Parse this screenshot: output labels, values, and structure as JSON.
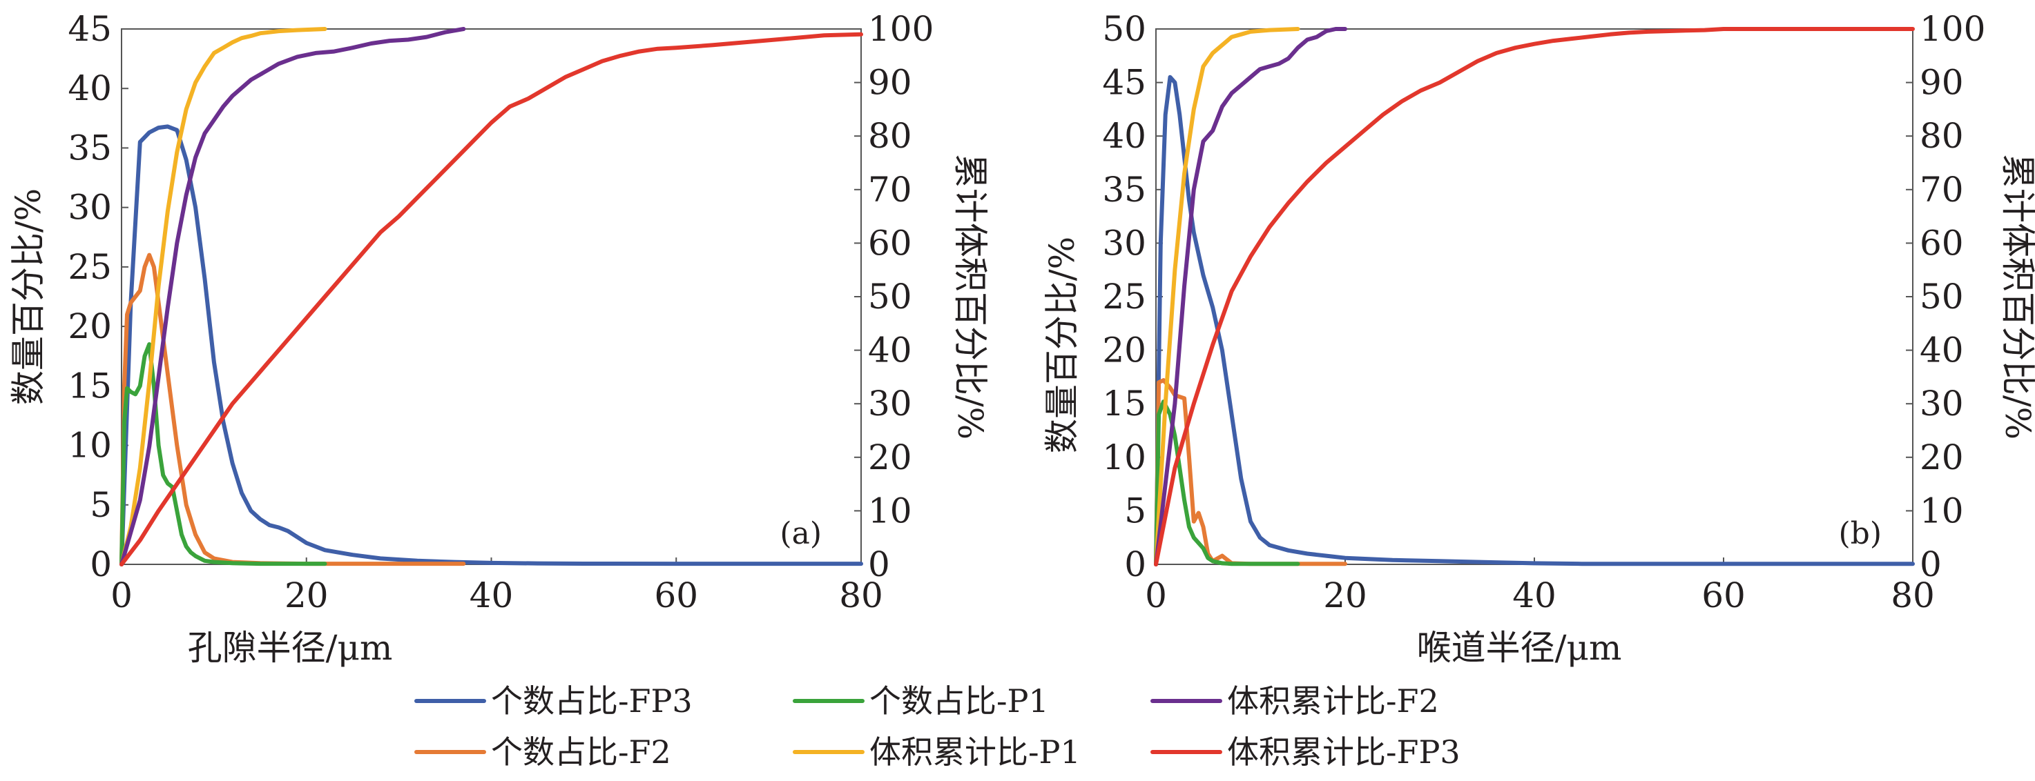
{
  "colors": {
    "FP3_count": "#3f5fa8",
    "F2_count": "#e57a35",
    "P1_count": "#3aa33b",
    "P1_vol": "#f4b224",
    "FP3_vol": "#e2372c",
    "F2_vol": "#6a2f8e"
  },
  "legend": {
    "items": [
      {
        "label": "个数占比-FP3",
        "color_key": "FP3_count"
      },
      {
        "label": "个数占比-P1",
        "color_key": "P1_count"
      },
      {
        "label": "体积累计比-F2",
        "color_key": "F2_vol"
      },
      {
        "label": "个数占比-F2",
        "color_key": "F2_count"
      },
      {
        "label": "体积累计比-P1",
        "color_key": "P1_vol"
      },
      {
        "label": "体积累计比-FP3",
        "color_key": "FP3_vol"
      }
    ]
  },
  "chart_data": [
    {
      "type": "line",
      "panel_label": "(a)",
      "xlabel": "孔隙半径/μm",
      "ylabel": "数量百分比/%",
      "y2label": "累计体积百分比/%",
      "xlim": [
        0,
        80
      ],
      "ylim": [
        0,
        45
      ],
      "y2lim": [
        0,
        100
      ],
      "xticks": [
        "0",
        "20",
        "40",
        "60",
        "80"
      ],
      "yticks": [
        "0",
        "5",
        "10",
        "15",
        "20",
        "25",
        "30",
        "35",
        "40",
        "45"
      ],
      "y2ticks": [
        "0",
        "10",
        "20",
        "30",
        "40",
        "50",
        "60",
        "70",
        "80",
        "90",
        "100"
      ],
      "grid": false,
      "series": [
        {
          "key": "FP3_count",
          "axis": "left",
          "x": [
            0,
            1,
            2,
            3,
            4,
            5,
            6,
            7,
            8,
            9,
            10,
            11,
            12,
            13,
            14,
            15,
            16,
            17,
            18,
            20,
            22,
            25,
            28,
            32,
            36,
            40,
            45,
            50,
            60,
            70,
            80
          ],
          "y": [
            0,
            22,
            35.5,
            36.3,
            36.7,
            36.8,
            36.5,
            34,
            30,
            24,
            17,
            12,
            8.5,
            6,
            4.5,
            3.8,
            3.3,
            3.1,
            2.8,
            1.8,
            1.2,
            0.8,
            0.5,
            0.3,
            0.2,
            0.12,
            0.08,
            0.06,
            0.05,
            0.05,
            0.05
          ]
        },
        {
          "key": "F2_count",
          "axis": "left",
          "x": [
            0,
            0.3,
            0.6,
            1,
            2,
            2.5,
            3,
            3.5,
            4,
            5,
            6,
            7,
            8,
            9,
            10,
            12,
            15,
            20,
            25,
            30,
            37
          ],
          "y": [
            0,
            15,
            21,
            22,
            23,
            25,
            26,
            25,
            22,
            16,
            10,
            5,
            2.5,
            1,
            0.5,
            0.2,
            0.1,
            0.05,
            0.05,
            0.05,
            0.05
          ]
        },
        {
          "key": "P1_count",
          "axis": "left",
          "x": [
            0,
            0.3,
            0.6,
            1,
            1.5,
            2,
            2.5,
            3,
            3.5,
            4,
            4.5,
            5,
            5.5,
            6,
            6.5,
            7,
            7.5,
            8,
            9,
            10,
            12,
            15,
            20,
            22
          ],
          "y": [
            0,
            12,
            14.8,
            14.5,
            14.3,
            15,
            17.5,
            18.5,
            15,
            10,
            7.5,
            6.8,
            6.5,
            4.5,
            2.5,
            1.5,
            1.0,
            0.7,
            0.3,
            0.2,
            0.1,
            0.05,
            0.05,
            0.05
          ]
        },
        {
          "key": "P1_vol",
          "axis": "right",
          "x": [
            0,
            1,
            2,
            3,
            4,
            5,
            6,
            7,
            8,
            9,
            10,
            11,
            12,
            13,
            14,
            15,
            17,
            19,
            22
          ],
          "y": [
            0,
            7,
            18,
            34,
            52,
            66,
            77,
            85,
            90,
            93,
            95.5,
            96.5,
            97.5,
            98.3,
            98.7,
            99.2,
            99.6,
            99.8,
            100
          ]
        },
        {
          "key": "F2_vol",
          "axis": "right",
          "x": [
            0,
            2,
            3,
            4,
            5,
            6,
            7,
            8,
            9,
            10,
            11,
            12,
            13,
            14,
            15,
            17,
            19,
            21,
            23,
            25,
            27,
            29,
            31,
            33,
            35,
            37
          ],
          "y": [
            0,
            12,
            22,
            35,
            48,
            60,
            69,
            76,
            80.5,
            83,
            85.5,
            87.5,
            89,
            90.5,
            91.5,
            93.5,
            94.8,
            95.5,
            95.8,
            96.5,
            97.3,
            97.8,
            98,
            98.5,
            99.4,
            100
          ]
        },
        {
          "key": "FP3_vol",
          "axis": "right",
          "x": [
            0,
            2,
            4,
            6,
            8,
            10,
            12,
            14,
            16,
            18,
            20,
            22,
            24,
            26,
            28,
            30,
            32,
            34,
            36,
            38,
            40,
            42,
            44,
            46,
            48,
            50,
            52,
            54,
            56,
            58,
            60,
            64,
            68,
            72,
            76,
            80
          ],
          "y": [
            0,
            4.5,
            10,
            15,
            20,
            25,
            30,
            34,
            38,
            42,
            46,
            50,
            54,
            58,
            62,
            65,
            68.5,
            72,
            75.5,
            79,
            82.5,
            85.5,
            87,
            89,
            91,
            92.5,
            94,
            95,
            95.8,
            96.3,
            96.5,
            97,
            97.6,
            98.2,
            98.8,
            99
          ]
        }
      ]
    },
    {
      "type": "line",
      "panel_label": "(b)",
      "xlabel": "喉道半径/μm",
      "ylabel": "数量百分比/%",
      "y2label": "累计体积百分比/%",
      "xlim": [
        0,
        80
      ],
      "ylim": [
        0,
        50
      ],
      "y2lim": [
        0,
        100
      ],
      "xticks": [
        "0",
        "20",
        "40",
        "60",
        "80"
      ],
      "yticks": [
        "0",
        "5",
        "10",
        "15",
        "20",
        "25",
        "30",
        "35",
        "40",
        "45",
        "50"
      ],
      "y2ticks": [
        "0",
        "10",
        "20",
        "30",
        "40",
        "50",
        "60",
        "70",
        "80",
        "90",
        "100"
      ],
      "grid": false,
      "series": [
        {
          "key": "FP3_count",
          "axis": "left",
          "x": [
            0,
            0.5,
            1,
            1.5,
            2,
            2.5,
            3,
            3.5,
            4,
            5,
            6,
            7,
            8,
            9,
            10,
            11,
            12,
            14,
            16,
            18,
            20,
            25,
            30,
            35,
            40,
            45,
            50,
            60,
            70,
            80
          ],
          "y": [
            0,
            30,
            42,
            45.5,
            45,
            42,
            38,
            34,
            31,
            27,
            24,
            20,
            14,
            8,
            4,
            2.5,
            1.8,
            1.3,
            1.0,
            0.8,
            0.6,
            0.4,
            0.3,
            0.2,
            0.1,
            0.05,
            0.05,
            0.05,
            0.05,
            0.05
          ]
        },
        {
          "key": "F2_count",
          "axis": "left",
          "x": [
            0,
            0.3,
            0.8,
            1.5,
            2,
            3,
            3.5,
            4,
            4.5,
            5,
            5.5,
            6,
            7,
            8,
            10,
            15,
            20
          ],
          "y": [
            0,
            17,
            17.2,
            16.5,
            15.8,
            15.5,
            10,
            4,
            4.8,
            3.5,
            1.0,
            0.3,
            0.8,
            0.1,
            0.05,
            0.05,
            0.05
          ]
        },
        {
          "key": "P1_count",
          "axis": "left",
          "x": [
            0,
            0.3,
            0.8,
            1.5,
            2,
            2.5,
            3,
            3.5,
            4,
            4.5,
            5,
            5.5,
            6,
            7,
            8,
            10,
            15
          ],
          "y": [
            0,
            14,
            15.2,
            14,
            12,
            9,
            6,
            3.5,
            2.5,
            2.0,
            1.5,
            0.6,
            0.3,
            0.1,
            0.05,
            0.05,
            0.05
          ]
        },
        {
          "key": "P1_vol",
          "axis": "right",
          "x": [
            0,
            0.5,
            1,
            2,
            3,
            4,
            5,
            6,
            7,
            8,
            9,
            10,
            12,
            15
          ],
          "y": [
            0,
            15,
            30,
            55,
            73,
            85,
            93,
            95.5,
            97,
            98.5,
            99,
            99.5,
            99.8,
            100
          ]
        },
        {
          "key": "F2_vol",
          "axis": "right",
          "x": [
            0,
            1,
            2,
            3,
            4,
            5,
            6,
            7,
            8,
            9,
            10,
            11,
            12,
            13,
            14,
            15,
            16,
            17,
            18,
            19,
            20
          ],
          "y": [
            0,
            15,
            30,
            52,
            70,
            79,
            81,
            85.5,
            88,
            89.5,
            91,
            92.5,
            93,
            93.5,
            94.5,
            96.5,
            98,
            98.5,
            99.6,
            100,
            100
          ]
        },
        {
          "key": "FP3_vol",
          "axis": "right",
          "x": [
            0,
            2,
            4,
            6,
            8,
            10,
            12,
            14,
            16,
            18,
            20,
            22,
            24,
            26,
            28,
            30,
            32,
            34,
            36,
            38,
            40,
            42,
            44,
            46,
            48,
            50,
            52,
            54,
            56,
            58,
            60,
            64,
            70,
            80
          ],
          "y": [
            0,
            18,
            30,
            41,
            51,
            57.5,
            63,
            67.5,
            71.5,
            75,
            78,
            81,
            84,
            86.5,
            88.5,
            90,
            92,
            94,
            95.5,
            96.5,
            97.2,
            97.8,
            98.2,
            98.6,
            99,
            99.3,
            99.5,
            99.6,
            99.7,
            99.8,
            100,
            100,
            100,
            100
          ]
        }
      ]
    }
  ]
}
